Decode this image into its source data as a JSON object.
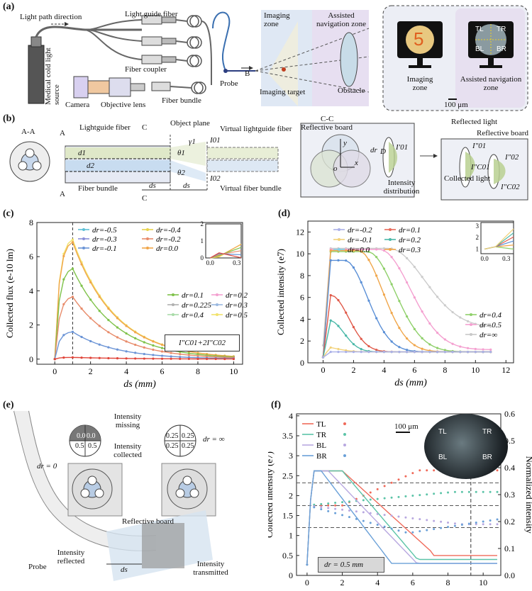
{
  "panels": {
    "a": {
      "label": "(a)",
      "light_path": "Light path direction",
      "light_guide_fiber": "Light guide fiber",
      "light_source": "Medical cold light source",
      "fiber_coupler": "Fiber coupler",
      "camera": "Camera",
      "objective": "Objective lens",
      "fiber_bundle": "Fiber bundle",
      "probe": "Probe",
      "b_arrow": "B",
      "imaging_zone": "Imaging zone",
      "assisted_zone": "Assisted navigation zone",
      "imaging_target": "Imaging target",
      "obstacle": "Obstacle",
      "monitor_digit": "5",
      "monitor_imaging": "Imaging zone",
      "monitor_assisted": "Assisted navigation zone",
      "quadrants": [
        "TL",
        "TR",
        "BL",
        "BR"
      ],
      "scale": "100 μm"
    },
    "b": {
      "label": "(b)",
      "aa": "A-A",
      "a_mark": "A",
      "c_mark": "C",
      "lightguide_fiber": "Lightguide fiber",
      "object_plane": "Object plane",
      "virtual_lightguide": "Virtual lightguide fiber",
      "fiber_bundle": "Fiber bundle",
      "virtual_bundle": "Virtual fiber bundle",
      "d1": "d1",
      "d2": "d2",
      "theta1": "θ1",
      "theta2": "θ2",
      "gamma1": "γ1",
      "i01": "I01",
      "i02": "I02",
      "ds": "ds",
      "cc": "C-C",
      "reflective_board": "Reflective board",
      "dr": "dr",
      "D": "D",
      "y": "y",
      "x": "x",
      "o": "o",
      "i01_prime": "I′01",
      "intensity_distribution": "Intensity distribution",
      "reflected_light": "Reflected light",
      "reflective_board2": "Reflective board",
      "i01_dd": "I″01",
      "i02_dd": "I″02",
      "ic01": "I″C01",
      "ic02": "I″C02",
      "collected_light": "Collected light"
    },
    "c": {
      "label": "(c)",
      "formula": "I″C01+2I″C02"
    },
    "d": {
      "label": "(d)"
    },
    "e": {
      "label": "(e)",
      "probe": "Probe",
      "dr0": "dr = 0",
      "drinf": "dr = ∞",
      "missing": "Intensity missing",
      "collected": "Intensity collected",
      "reflective_board": "Reflective board",
      "reflected": "Intensity reflected",
      "transmitted": "Intensity transmitted",
      "ds": "ds",
      "q_left": [
        "0.0",
        "0.0",
        "0.5",
        "0.5"
      ],
      "q_right": [
        "0.25",
        "0.25",
        "0.25",
        "0.25"
      ]
    },
    "f": {
      "label": "(f)",
      "dr_box": "dr = 0.5 mm",
      "scale": "100 μm",
      "quadrants": [
        "TL",
        "TR",
        "BL",
        "BR"
      ]
    }
  },
  "chart_data": [
    {
      "id": "c",
      "type": "line",
      "xlabel": "ds (mm)",
      "ylabel": "Collected flux (e-10 lm)",
      "xlim": [
        -1,
        10.5
      ],
      "ylim": [
        -0.3,
        8
      ],
      "xticks": [
        0,
        2,
        4,
        6,
        8,
        10
      ],
      "yticks": [
        0,
        2,
        4,
        6,
        8
      ],
      "dashed_x": 1,
      "legend_top": [
        {
          "name": "dr=-0.5",
          "color": "#5cbfd6"
        },
        {
          "name": "dr=-0.4",
          "color": "#e8d24a"
        },
        {
          "name": "dr=-0.3",
          "color": "#8a8fd8"
        },
        {
          "name": "dr=-0.2",
          "color": "#e88b6a"
        },
        {
          "name": "dr=-0.1",
          "color": "#6b94d6"
        },
        {
          "name": "dr=0.0",
          "color": "#f0a64a"
        }
      ],
      "legend_bottom": [
        {
          "name": "dr=0.1",
          "color": "#7fc24a"
        },
        {
          "name": "dr=0.2",
          "color": "#f4a0d0"
        },
        {
          "name": "dr=0.225",
          "color": "#b0b0b0"
        },
        {
          "name": "dr=0.3",
          "color": "#9ab8e0"
        },
        {
          "name": "dr=0.4",
          "color": "#a8dba8"
        },
        {
          "name": "dr=0.5",
          "color": "#f2e26a"
        }
      ],
      "series": [
        {
          "name": "dr=0.5",
          "color": "#f2e26a",
          "peak": 7.0,
          "decay": 0.42
        },
        {
          "name": "dr=0.4",
          "color": "#f0a64a",
          "peak": 6.85,
          "decay": 0.42
        },
        {
          "name": "dr=0.3",
          "color": "#7fc24a",
          "peak": 5.3,
          "decay": 0.42
        },
        {
          "name": "dr=0.225",
          "color": "#e88b6a",
          "peak": 3.65,
          "decay": 0.42
        },
        {
          "name": "dr=0.2",
          "color": "#6b94d6",
          "peak": 1.6,
          "decay": 0.42
        },
        {
          "name": "dr=0.1",
          "color": "#e0453a",
          "peak": 0.1,
          "decay": 0.3
        }
      ],
      "inset": {
        "xlim": [
          -0.05,
          0.35
        ],
        "ylim": [
          0,
          2
        ],
        "xticks": [
          0.0,
          0.3
        ],
        "yticks": [
          0,
          1,
          2
        ]
      }
    },
    {
      "id": "d",
      "type": "line",
      "xlabel": "ds (mm)",
      "ylabel": "Collected intensity (e7)",
      "xlim": [
        -1,
        12.5
      ],
      "ylim": [
        0,
        13
      ],
      "xticks": [
        0,
        2,
        4,
        6,
        8,
        10,
        12
      ],
      "yticks": [
        0,
        2,
        4,
        6,
        8,
        10,
        12
      ],
      "legend_top": [
        {
          "name": "dr=-0.2",
          "color": "#aab0e8"
        },
        {
          "name": "dr=0.1",
          "color": "#e86a5a"
        },
        {
          "name": "dr=-0.1",
          "color": "#f2d27a"
        },
        {
          "name": "dr=0.2",
          "color": "#4ab8a8"
        },
        {
          "name": "dr=0.0",
          "color": "#7fd0e8"
        },
        {
          "name": "dr=0.3",
          "color": "#f0a64a"
        }
      ],
      "legend_right": [
        {
          "name": "dr=0.4",
          "color": "#8fd06a"
        },
        {
          "name": "dr=0.5",
          "color": "#f4a0d0"
        },
        {
          "name": "dr=∞",
          "color": "#c8c8c8"
        }
      ],
      "series": [
        {
          "name": "dr=∞",
          "color": "#cccccc",
          "peak": 10.5,
          "center": 6.5,
          "width": 2.2,
          "tail": 3.2
        },
        {
          "name": "dr=0.5",
          "color": "#f4a0d0",
          "peak": 10.4,
          "center": 5.6,
          "width": 1.9,
          "tail": 1.2
        },
        {
          "name": "dr=0.4",
          "color": "#8fd06a",
          "peak": 10.2,
          "center": 4.6,
          "width": 1.7,
          "tail": 1.0
        },
        {
          "name": "dr=0.3",
          "color": "#f0a64a",
          "peak": 10.3,
          "center": 3.8,
          "width": 1.5,
          "tail": 1.0
        },
        {
          "name": "dr=0.2",
          "color": "#5a8fd6",
          "peak": 9.4,
          "center": 2.8,
          "width": 1.4,
          "tail": 1.0
        },
        {
          "name": "dr=0.1",
          "color": "#e05a4a",
          "peak": 6.2,
          "center": 1.6,
          "width": 1.1,
          "tail": 1.0
        },
        {
          "name": "dr=0.0",
          "color": "#4ab8a8",
          "peak": 3.9,
          "center": 1.3,
          "width": 0.9,
          "tail": 1.0
        },
        {
          "name": "dr=-0.1",
          "color": "#f2d27a",
          "peak": 1.5,
          "center": 0.8,
          "width": 1.0,
          "tail": 1.0
        },
        {
          "name": "dr=-0.2",
          "color": "#aab0e8",
          "peak": 1.0,
          "center": 0.5,
          "width": 1.0,
          "tail": 1.0
        }
      ],
      "inset": {
        "xlim": [
          -0.05,
          0.4
        ],
        "ylim": [
          0.6,
          3.3
        ],
        "xticks": [
          0.0,
          0.3
        ],
        "yticks": [
          1,
          2,
          3
        ]
      }
    },
    {
      "id": "f",
      "type": "line",
      "xlabel": "ds (mm)",
      "ylabel": "Collected intensity (e7)",
      "y2label": "Normalized intensity",
      "xlim": [
        -0.6,
        11
      ],
      "ylim": [
        0,
        4.05
      ],
      "y2lim": [
        0,
        0.6
      ],
      "xticks": [
        0,
        2,
        4,
        6,
        8,
        10
      ],
      "yticks": [
        0.0,
        0.5,
        1.0,
        1.5,
        2.0,
        2.5,
        3.0,
        3.5,
        4.0
      ],
      "y2ticks": [
        0.0,
        0.1,
        0.2,
        0.3,
        0.4,
        0.5,
        0.6
      ],
      "dashed_x": 9.3,
      "hlines": [
        2.32,
        1.75,
        1.2
      ],
      "series": [
        {
          "name": "TL",
          "color": "#f06a5a"
        },
        {
          "name": "TR",
          "color": "#5cc4a8"
        },
        {
          "name": "BL",
          "color": "#b8a8e0"
        },
        {
          "name": "BR",
          "color": "#6aa0d8"
        }
      ]
    }
  ]
}
